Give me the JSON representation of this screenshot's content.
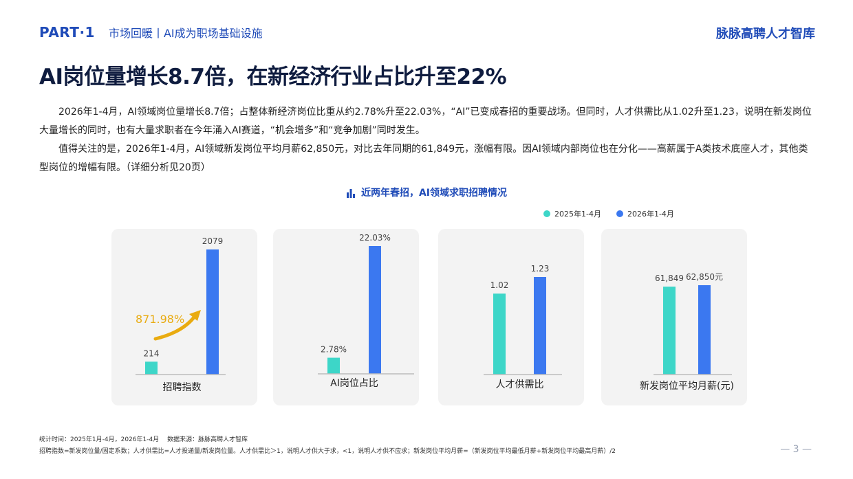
{
  "header": {
    "part": "PART·1",
    "section": "市场回暖丨AI成为职场基础设施",
    "brand": "脉脉高聘人才智库"
  },
  "title": "AI岗位量增长8.7倍，在新经济行业占比升至22%",
  "paragraphs": [
    "2026年1-4月，AI领域岗位量增长8.7倍；占整体新经济岗位比重从约2.78%升至22.03%，“AI”已变成春招的重要战场。但同时，人才供需比从1.02升至1.23，说明在新发岗位大量增长的同时，也有大量求职者在今年涌入AI赛道，“机会增多”和“竞争加剧”同时发生。",
    "值得关注的是，2026年1-4月，AI领域新发岗位平均月薪62,850元，对比去年同期的61,849元，涨幅有限。因AI领域内部岗位也在分化——高薪属于A类技术底座人才，其他类型岗位的增幅有限。（详细分析见20页）"
  ],
  "chart_title": "近两年春招，AI领域求职招聘情况",
  "legend": [
    {
      "name": "2025年1-4月",
      "color": "#3dd6c8"
    },
    {
      "name": "2026年1-4月",
      "color": "#3b78f0"
    }
  ],
  "chart_data": [
    {
      "type": "bar",
      "category": "招聘指数",
      "series": [
        {
          "name": "2025年1-4月",
          "value": 214,
          "label": "214"
        },
        {
          "name": "2026年1-4月",
          "value": 2079,
          "label": "2079"
        }
      ],
      "annotation": "871.98%"
    },
    {
      "type": "bar",
      "category": "AI岗位占比",
      "series": [
        {
          "name": "2025年1-4月",
          "value": 2.78,
          "label": "2.78%"
        },
        {
          "name": "2026年1-4月",
          "value": 22.03,
          "label": "22.03%"
        }
      ]
    },
    {
      "type": "bar",
      "category": "人才供需比",
      "series": [
        {
          "name": "2025年1-4月",
          "value": 1.02,
          "label": "1.02"
        },
        {
          "name": "2026年1-4月",
          "value": 1.23,
          "label": "1.23"
        }
      ]
    },
    {
      "type": "bar",
      "category": "新发岗位平均月薪(元)",
      "series": [
        {
          "name": "2025年1-4月",
          "value": 61849,
          "label": "61,849"
        },
        {
          "name": "2026年1-4月",
          "value": 62850,
          "label": "62,850元"
        }
      ]
    }
  ],
  "footer": {
    "line1": "统计时间：2025年1月-4月，2026年1-4月　 数据来源：脉脉高聘人才智库",
    "line2": "招聘指数=新发岗位量/固定系数；人才供需比=人才投递量/新发岗位量。人才供需比＞1，说明人才供大于求，<1，说明人才供不应求；新发岗位平均月薪=（新发岗位平均最低月薪+新发岗位平均最高月薪）/2",
    "page": "— 3 —"
  }
}
